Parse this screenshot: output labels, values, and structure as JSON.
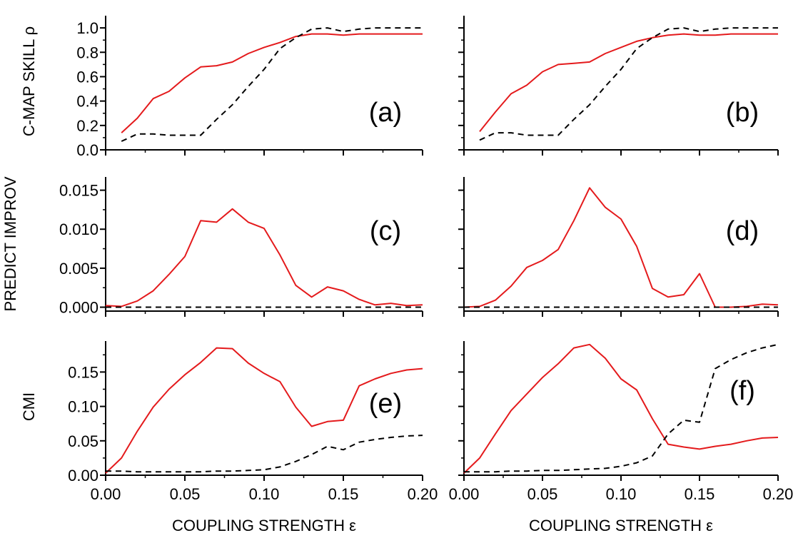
{
  "chart_data": [
    {
      "panel": "(a)",
      "type": "line",
      "ylabel": "C-MAP SKILL ρ",
      "xlabel": "",
      "xlim": [
        0,
        0.2
      ],
      "ylim": [
        0,
        1.1
      ],
      "yticks": [
        "0.0",
        "0.2",
        "0.4",
        "0.6",
        "0.8",
        "1.0"
      ],
      "xticks": [],
      "series": [
        {
          "style": "solid",
          "color": "#e41a1c",
          "x": [
            0.01,
            0.02,
            0.03,
            0.04,
            0.05,
            0.06,
            0.07,
            0.08,
            0.09,
            0.1,
            0.11,
            0.12,
            0.13,
            0.14,
            0.15,
            0.16,
            0.17,
            0.18,
            0.19,
            0.2
          ],
          "y": [
            0.14,
            0.26,
            0.42,
            0.48,
            0.59,
            0.68,
            0.69,
            0.72,
            0.79,
            0.84,
            0.88,
            0.93,
            0.95,
            0.95,
            0.94,
            0.95,
            0.95,
            0.95,
            0.95,
            0.95
          ]
        },
        {
          "style": "dashed",
          "color": "#000000",
          "x": [
            0.01,
            0.02,
            0.03,
            0.04,
            0.05,
            0.06,
            0.07,
            0.08,
            0.09,
            0.1,
            0.11,
            0.12,
            0.13,
            0.14,
            0.15,
            0.16,
            0.17,
            0.18,
            0.19,
            0.2
          ],
          "y": [
            0.07,
            0.13,
            0.13,
            0.12,
            0.12,
            0.12,
            0.25,
            0.37,
            0.52,
            0.66,
            0.83,
            0.92,
            0.99,
            1.0,
            0.97,
            0.99,
            1.0,
            1.0,
            1.0,
            1.0
          ]
        }
      ]
    },
    {
      "panel": "(b)",
      "type": "line",
      "ylabel": "",
      "xlabel": "",
      "xlim": [
        0,
        0.2
      ],
      "ylim": [
        0,
        1.1
      ],
      "yticks": [],
      "xticks": [],
      "series": [
        {
          "style": "solid",
          "color": "#e41a1c",
          "x": [
            0.01,
            0.02,
            0.03,
            0.04,
            0.05,
            0.06,
            0.07,
            0.08,
            0.09,
            0.1,
            0.11,
            0.12,
            0.13,
            0.14,
            0.15,
            0.16,
            0.17,
            0.18,
            0.19,
            0.2
          ],
          "y": [
            0.15,
            0.31,
            0.46,
            0.53,
            0.64,
            0.7,
            0.71,
            0.72,
            0.79,
            0.84,
            0.89,
            0.92,
            0.94,
            0.95,
            0.94,
            0.94,
            0.95,
            0.95,
            0.95,
            0.95
          ]
        },
        {
          "style": "dashed",
          "color": "#000000",
          "x": [
            0.01,
            0.02,
            0.03,
            0.04,
            0.05,
            0.06,
            0.07,
            0.08,
            0.09,
            0.1,
            0.11,
            0.12,
            0.13,
            0.14,
            0.15,
            0.16,
            0.17,
            0.18,
            0.19,
            0.2
          ],
          "y": [
            0.08,
            0.14,
            0.14,
            0.12,
            0.12,
            0.12,
            0.25,
            0.37,
            0.52,
            0.66,
            0.83,
            0.92,
            0.99,
            1.0,
            0.97,
            0.99,
            1.0,
            1.0,
            1.0,
            1.0
          ]
        }
      ]
    },
    {
      "panel": "(c)",
      "type": "line",
      "ylabel": "PREDICT IMPROV",
      "xlabel": "",
      "xlim": [
        0,
        0.2
      ],
      "ylim": [
        -0.0005,
        0.0167
      ],
      "yticks": [
        "0.000",
        "0.005",
        "0.010",
        "0.015"
      ],
      "xticks": [],
      "series": [
        {
          "style": "solid",
          "color": "#e41a1c",
          "x": [
            0.0,
            0.01,
            0.02,
            0.03,
            0.04,
            0.05,
            0.06,
            0.07,
            0.08,
            0.09,
            0.1,
            0.11,
            0.12,
            0.13,
            0.14,
            0.15,
            0.16,
            0.17,
            0.18,
            0.19,
            0.2
          ],
          "y": [
            0.0002,
            0.0001,
            0.0008,
            0.0021,
            0.0042,
            0.0065,
            0.0111,
            0.0109,
            0.0126,
            0.0109,
            0.0101,
            0.0067,
            0.0028,
            0.0013,
            0.0026,
            0.0021,
            0.001,
            0.0003,
            0.0005,
            0.0002,
            0.0003
          ]
        },
        {
          "style": "dashed",
          "color": "#000000",
          "x": [
            0.0,
            0.2
          ],
          "y": [
            0.0,
            0.0
          ]
        }
      ]
    },
    {
      "panel": "(d)",
      "type": "line",
      "ylabel": "",
      "xlabel": "",
      "xlim": [
        0,
        0.2
      ],
      "ylim": [
        -0.0005,
        0.0167
      ],
      "yticks": [],
      "xticks": [],
      "series": [
        {
          "style": "solid",
          "color": "#e41a1c",
          "x": [
            0.0,
            0.01,
            0.02,
            0.03,
            0.04,
            0.05,
            0.06,
            0.07,
            0.08,
            0.09,
            0.1,
            0.11,
            0.12,
            0.13,
            0.14,
            0.15,
            0.16,
            0.17,
            0.18,
            0.19,
            0.2
          ],
          "y": [
            0.0,
            0.0001,
            0.0009,
            0.0027,
            0.0051,
            0.006,
            0.0074,
            0.0111,
            0.0153,
            0.0128,
            0.0113,
            0.0078,
            0.0024,
            0.0013,
            0.0016,
            0.0043,
            0.0,
            0.0,
            0.0001,
            0.0004,
            0.0003
          ]
        },
        {
          "style": "dashed",
          "color": "#000000",
          "x": [
            0.0,
            0.2
          ],
          "y": [
            0.0,
            0.0
          ]
        }
      ]
    },
    {
      "panel": "(e)",
      "type": "line",
      "ylabel": "CMI",
      "xlabel": "COUPLING STRENGTH ε",
      "xlim": [
        0,
        0.2
      ],
      "ylim": [
        0,
        0.195
      ],
      "yticks": [
        "0.00",
        "0.05",
        "0.10",
        "0.15"
      ],
      "xticks": [
        "0.00",
        "0.05",
        "0.10",
        "0.15",
        "0.20"
      ],
      "series": [
        {
          "style": "solid",
          "color": "#e41a1c",
          "x": [
            0.0,
            0.01,
            0.02,
            0.03,
            0.04,
            0.05,
            0.06,
            0.07,
            0.08,
            0.09,
            0.1,
            0.11,
            0.12,
            0.13,
            0.14,
            0.15,
            0.16,
            0.17,
            0.18,
            0.19,
            0.2
          ],
          "y": [
            0.003,
            0.025,
            0.064,
            0.099,
            0.125,
            0.146,
            0.164,
            0.185,
            0.184,
            0.163,
            0.148,
            0.136,
            0.099,
            0.071,
            0.078,
            0.08,
            0.13,
            0.14,
            0.148,
            0.153,
            0.155
          ]
        },
        {
          "style": "dashed",
          "color": "#000000",
          "x": [
            0.0,
            0.01,
            0.02,
            0.03,
            0.04,
            0.05,
            0.06,
            0.07,
            0.08,
            0.09,
            0.1,
            0.11,
            0.12,
            0.13,
            0.14,
            0.15,
            0.16,
            0.17,
            0.18,
            0.19,
            0.2
          ],
          "y": [
            0.006,
            0.006,
            0.005,
            0.005,
            0.005,
            0.005,
            0.005,
            0.006,
            0.006,
            0.007,
            0.008,
            0.012,
            0.02,
            0.03,
            0.042,
            0.037,
            0.048,
            0.052,
            0.055,
            0.057,
            0.058
          ]
        }
      ]
    },
    {
      "panel": "(f)",
      "type": "line",
      "ylabel": "",
      "xlabel": "COUPLING STRENGTH ε",
      "xlim": [
        0,
        0.2
      ],
      "ylim": [
        0,
        0.195
      ],
      "yticks": [],
      "xticks": [
        "0.00",
        "0.05",
        "0.10",
        "0.15",
        "0.20"
      ],
      "series": [
        {
          "style": "solid",
          "color": "#e41a1c",
          "x": [
            0.0,
            0.01,
            0.02,
            0.03,
            0.04,
            0.05,
            0.06,
            0.07,
            0.08,
            0.09,
            0.1,
            0.11,
            0.12,
            0.13,
            0.14,
            0.15,
            0.16,
            0.17,
            0.18,
            0.19,
            0.2
          ],
          "y": [
            0.003,
            0.025,
            0.06,
            0.094,
            0.118,
            0.142,
            0.162,
            0.185,
            0.19,
            0.17,
            0.14,
            0.124,
            0.082,
            0.045,
            0.041,
            0.038,
            0.042,
            0.045,
            0.05,
            0.054,
            0.055
          ]
        },
        {
          "style": "dashed",
          "color": "#000000",
          "x": [
            0.0,
            0.01,
            0.02,
            0.03,
            0.04,
            0.05,
            0.06,
            0.07,
            0.08,
            0.09,
            0.1,
            0.11,
            0.12,
            0.13,
            0.14,
            0.15,
            0.16,
            0.17,
            0.18,
            0.19,
            0.2
          ],
          "y": [
            0.005,
            0.005,
            0.005,
            0.006,
            0.006,
            0.007,
            0.007,
            0.008,
            0.009,
            0.01,
            0.013,
            0.018,
            0.028,
            0.06,
            0.08,
            0.077,
            0.155,
            0.168,
            0.178,
            0.185,
            0.19
          ]
        }
      ]
    }
  ]
}
